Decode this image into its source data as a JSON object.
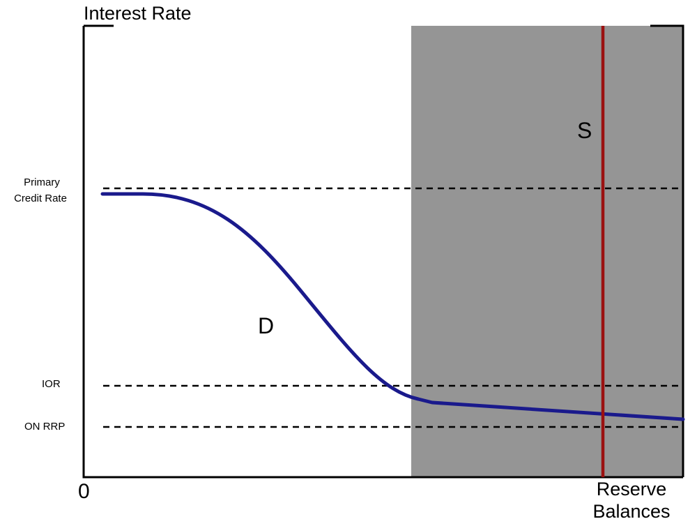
{
  "labels": {
    "y_axis": "Interest Rate",
    "x_axis_line1": "Reserve",
    "x_axis_line2": "Balances",
    "origin": "0",
    "primary_credit_line1": "Primary",
    "primary_credit_line2": "Credit Rate",
    "ior": "IOR",
    "on_rrp": "ON RRP",
    "demand": "D",
    "supply": "S"
  },
  "colors": {
    "demand_curve": "#1a1a8c",
    "supply_line": "#9b1111",
    "shaded_region": "#959595",
    "axes": "#000000",
    "dashed_lines": "#000000"
  }
}
